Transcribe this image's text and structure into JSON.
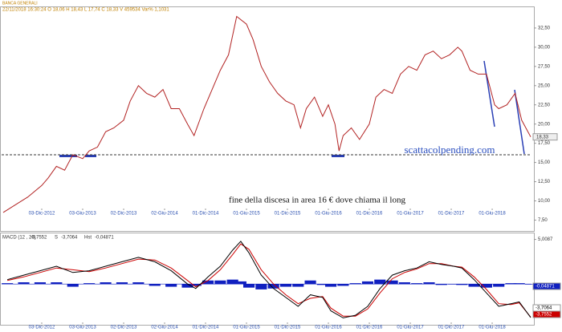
{
  "chart_data": [
    {
      "type": "line",
      "title": "BANCA GENERALI",
      "subtitle": "22/11/2018 16:30:24  O 18,06  H 18,43  L 17,74  C 18,33  V 459534  Var% 1,1031",
      "annotations": [
        "scattacolpending.com",
        "fine della discesa in area 16 € dove chiama il long"
      ],
      "hline": 16,
      "last_label": {
        "value": 18.33,
        "label": "18,33"
      },
      "xlim": [
        2012.43,
        2018.9
      ],
      "xticks": [
        {
          "value": 2012.92,
          "label": "03-Dic-2012"
        },
        {
          "value": 2013.42,
          "label": "03-Giu-2013"
        },
        {
          "value": 2013.92,
          "label": "02-Dic-2013"
        },
        {
          "value": 2014.42,
          "label": "02-Giu-2014"
        },
        {
          "value": 2014.92,
          "label": "01-Dic-2014"
        },
        {
          "value": 2015.42,
          "label": "01-Giu-2015"
        },
        {
          "value": 2015.92,
          "label": "01-Dic-2015"
        },
        {
          "value": 2016.42,
          "label": "01-Giu-2016"
        },
        {
          "value": 2016.92,
          "label": "01-Dic-2016"
        },
        {
          "value": 2017.42,
          "label": "01-Giu-2017"
        },
        {
          "value": 2017.92,
          "label": "01-Dic-2017"
        },
        {
          "value": 2018.42,
          "label": "01-Giu-2018"
        }
      ],
      "ylim": [
        6.4,
        35.1
      ],
      "yticks": [
        {
          "value": 7.5,
          "label": "7,50"
        },
        {
          "value": 10,
          "label": "10,00"
        },
        {
          "value": 12.5,
          "label": "12,50"
        },
        {
          "value": 15,
          "label": "15,00"
        },
        {
          "value": 17.5,
          "label": "17,50"
        },
        {
          "value": 20,
          "label": "20,00"
        },
        {
          "value": 22.5,
          "label": "22,50"
        },
        {
          "value": 25,
          "label": "25,00"
        },
        {
          "value": 27.5,
          "label": "27,50"
        },
        {
          "value": 30,
          "label": "30,00"
        },
        {
          "value": 32.5,
          "label": "32,50"
        }
      ],
      "x": [
        2012.45,
        2012.6,
        2012.75,
        2012.92,
        2013.0,
        2013.1,
        2013.2,
        2013.3,
        2013.42,
        2013.5,
        2013.6,
        2013.7,
        2013.8,
        2013.92,
        2014.0,
        2014.1,
        2014.2,
        2014.3,
        2014.4,
        2014.5,
        2014.6,
        2014.7,
        2014.78,
        2014.9,
        2015.0,
        2015.1,
        2015.2,
        2015.3,
        2015.42,
        2015.5,
        2015.6,
        2015.7,
        2015.8,
        2015.9,
        2016.0,
        2016.08,
        2016.15,
        2016.25,
        2016.35,
        2016.42,
        2016.5,
        2016.55,
        2016.6,
        2016.7,
        2016.8,
        2016.92,
        2017.0,
        2017.1,
        2017.2,
        2017.3,
        2017.4,
        2017.5,
        2017.6,
        2017.7,
        2017.8,
        2017.9,
        2018.0,
        2018.05,
        2018.15,
        2018.25,
        2018.35,
        2018.45,
        2018.5,
        2018.6,
        2018.7,
        2018.78,
        2018.89
      ],
      "series": [
        {
          "color": "#b22222",
          "values": [
            8.5,
            9.5,
            10.5,
            12.0,
            13.0,
            14.5,
            14.0,
            16.0,
            15.5,
            16.5,
            17.0,
            19.0,
            19.5,
            20.5,
            23.0,
            25.0,
            24.0,
            23.5,
            24.5,
            22.0,
            22.0,
            20.0,
            18.5,
            22.0,
            24.5,
            27.0,
            29.0,
            34.0,
            33.0,
            31.0,
            27.5,
            25.5,
            24.0,
            23.0,
            22.5,
            19.5,
            22.0,
            23.5,
            21.0,
            22.5,
            20.0,
            16.5,
            18.5,
            19.5,
            18.0,
            20.0,
            23.5,
            24.5,
            24.0,
            26.5,
            27.5,
            27.0,
            29.0,
            29.5,
            28.5,
            29.0,
            30.0,
            29.5,
            27.0,
            26.5,
            26.5,
            22.5,
            22.0,
            22.5,
            24.0,
            20.5,
            18.33
          ]
        }
      ]
    },
    {
      "type": "macd",
      "title": "MACD  (12 , 26)",
      "xlim": [
        2012.43,
        2018.9
      ],
      "xticks": [
        {
          "value": 2012.92,
          "label": "03-Dic-2012"
        },
        {
          "value": 2013.42,
          "label": "03-Giu-2013"
        },
        {
          "value": 2013.92,
          "label": "02-Dic-2013"
        },
        {
          "value": 2014.42,
          "label": "02-Giu-2014"
        },
        {
          "value": 2014.92,
          "label": "01-Dic-2014"
        },
        {
          "value": 2015.42,
          "label": "01-Giu-2015"
        },
        {
          "value": 2015.92,
          "label": "01-Dic-2015"
        },
        {
          "value": 2016.42,
          "label": "01-Giu-2016"
        },
        {
          "value": 2016.92,
          "label": "01-Dic-2016"
        },
        {
          "value": 2017.42,
          "label": "01-Giu-2017"
        },
        {
          "value": 2017.92,
          "label": "01-Dic-2017"
        },
        {
          "value": 2018.42,
          "label": "01-Giu-2018"
        }
      ],
      "ylim": [
        -4.3,
        5.6
      ],
      "yticks": [
        {
          "value": 5.0087,
          "label": "5,0087"
        }
      ],
      "x": [
        2012.5,
        2012.7,
        2012.9,
        2013.1,
        2013.3,
        2013.5,
        2013.7,
        2013.9,
        2014.1,
        2014.3,
        2014.5,
        2014.7,
        2014.8,
        2014.95,
        2015.1,
        2015.25,
        2015.35,
        2015.45,
        2015.6,
        2015.75,
        2015.9,
        2016.05,
        2016.2,
        2016.35,
        2016.45,
        2016.6,
        2016.75,
        2016.9,
        2017.05,
        2017.2,
        2017.35,
        2017.5,
        2017.65,
        2017.8,
        2017.95,
        2018.05,
        2018.2,
        2018.35,
        2018.5,
        2018.65,
        2018.75,
        2018.89
      ],
      "series": [
        {
          "color": "#000000",
          "last_label": "-3,7552",
          "values": [
            0.5,
            1.0,
            1.5,
            2.0,
            1.3,
            1.5,
            2.0,
            2.5,
            3.0,
            2.5,
            1.5,
            0.0,
            -0.5,
            0.8,
            2.0,
            3.8,
            4.8,
            3.5,
            1.0,
            -0.5,
            -1.5,
            -2.5,
            -1.2,
            -1.5,
            -3.0,
            -3.8,
            -3.5,
            -2.5,
            -0.5,
            1.0,
            1.5,
            1.8,
            2.5,
            2.2,
            2.0,
            1.8,
            0.5,
            -1.0,
            -2.5,
            -2.2,
            -2.0,
            -3.7552
          ]
        },
        {
          "name": "S",
          "color": "#cc0000",
          "last_label": "-3,7064",
          "values": [
            0.4,
            0.8,
            1.3,
            1.8,
            1.6,
            1.4,
            1.8,
            2.3,
            2.8,
            2.7,
            1.8,
            0.4,
            -0.3,
            0.4,
            1.6,
            3.3,
            4.5,
            3.9,
            1.6,
            0.0,
            -1.2,
            -2.2,
            -1.6,
            -1.4,
            -2.7,
            -3.6,
            -3.6,
            -2.8,
            -1.0,
            0.6,
            1.3,
            1.7,
            2.3,
            2.3,
            2.0,
            1.9,
            0.8,
            -0.6,
            -2.2,
            -2.3,
            -2.1,
            -3.7064
          ]
        },
        {
          "name": "Hst",
          "color": "#1020c0",
          "last_label": "-0,04871",
          "values": [
            0.1,
            0.2,
            0.2,
            0.2,
            -0.3,
            0.1,
            0.2,
            0.2,
            0.2,
            -0.2,
            -0.3,
            -0.4,
            -0.2,
            0.4,
            0.4,
            0.5,
            0.3,
            -0.4,
            -0.6,
            -0.5,
            -0.3,
            -0.3,
            0.4,
            -0.1,
            -0.3,
            -0.2,
            0.1,
            0.3,
            0.5,
            0.4,
            0.2,
            0.1,
            0.2,
            -0.1,
            0.0,
            -0.1,
            -0.3,
            -0.4,
            -0.3,
            0.1,
            0.1,
            -0.04871
          ]
        }
      ]
    }
  ]
}
